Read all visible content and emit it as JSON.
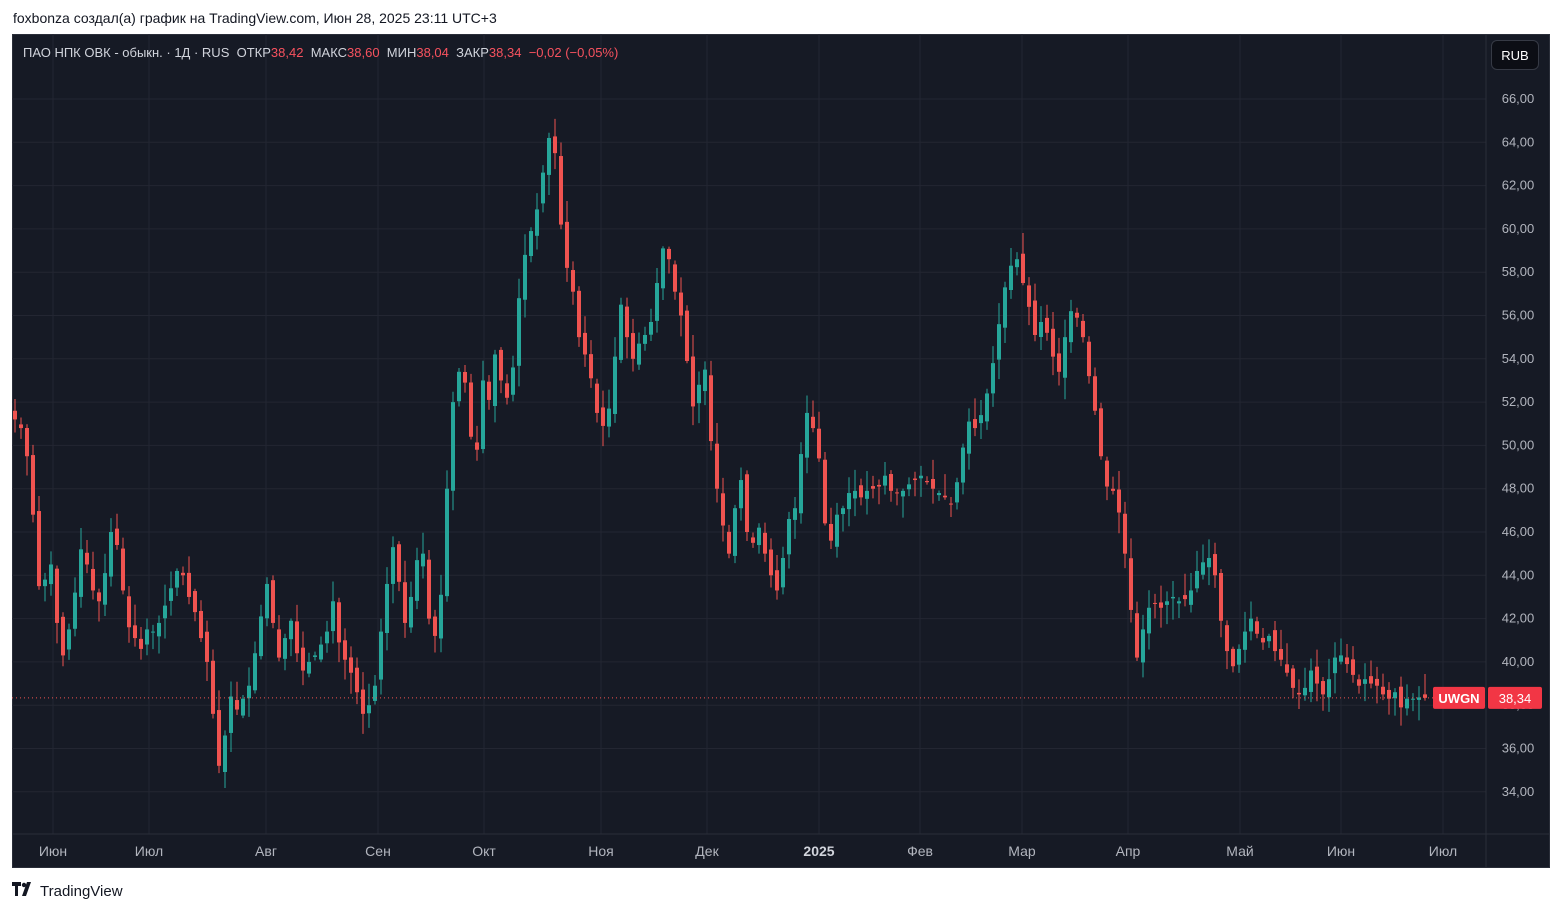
{
  "caption": "foxbonza создал(а) график на TradingView.com, Июн 28, 2025 23:11 UTC+3",
  "legend": {
    "symbol": "ПАО НПК ОВК - обыкн. · 1Д · RUS",
    "open_label": "ОТКР",
    "open_value": "38,42",
    "high_label": "МАКС",
    "high_value": "38,60",
    "low_label": "МИН",
    "low_value": "38,04",
    "close_label": "ЗАКР",
    "close_value": "38,34",
    "change": "−0,02 (−0,05%)"
  },
  "currency_button": "RUB",
  "last_price": {
    "ticker": "UWGN",
    "value": "38,34"
  },
  "footer": {
    "brand": "TradingView",
    "logo_icon": "tradingview-logo-icon"
  },
  "colors": {
    "up": "#26a69a",
    "down": "#ef5350",
    "background": "#161a25",
    "grid": "#232632",
    "text": "#b2b5be"
  },
  "chart_data": {
    "type": "candlestick",
    "x_labels": [
      "Июн",
      "Июл",
      "Авг",
      "Сен",
      "Окт",
      "Ноя",
      "Дек",
      "2025",
      "Фев",
      "Мар",
      "Апр",
      "Май",
      "Июн",
      "Июл"
    ],
    "y_ticks": [
      "34,00",
      "36,00",
      "38,00",
      "40,00",
      "42,00",
      "44,00",
      "46,00",
      "48,00",
      "50,00",
      "52,00",
      "54,00",
      "56,00",
      "58,00",
      "60,00",
      "62,00",
      "64,00",
      "66,00"
    ],
    "ylim": [
      32.0,
      68.0
    ],
    "grid": true,
    "last_value": 38.34,
    "close_series": [
      51.2,
      50.8,
      49.5,
      46.8,
      43.5,
      43.8,
      44.5,
      41.8,
      40.3,
      41.5,
      43.2,
      45.2,
      44.5,
      43.3,
      42.8,
      44.1,
      46.0,
      45.4,
      43.3,
      41.6,
      41.1,
      40.6,
      41.5,
      41.4,
      41.8,
      42.6,
      43.4,
      44.2,
      44.0,
      43.0,
      42.3,
      41.1,
      40.0,
      37.6,
      35.2,
      36.6,
      38.4,
      37.8,
      38.3,
      38.9,
      40.4,
      42.1,
      43.6,
      41.8,
      40.2,
      41.1,
      41.9,
      40.4,
      39.6,
      40.0,
      40.3,
      40.8,
      41.4,
      42.8,
      40.9,
      40.1,
      39.5,
      38.6,
      37.6,
      38.0,
      38.9,
      41.4,
      43.6,
      45.3,
      43.7,
      41.8,
      43.0,
      44.7,
      45.0,
      42.0,
      41.2,
      43.1,
      48.0,
      52.0,
      53.4,
      52.9,
      50.4,
      49.8,
      53.0,
      52.1,
      54.2,
      53.0,
      52.2,
      53.6,
      56.8,
      58.8,
      59.9,
      60.9,
      62.6,
      64.2,
      63.5,
      60.2,
      58.2,
      57.1,
      55.0,
      54.2,
      53.1,
      51.5,
      50.9,
      51.7,
      54.1,
      56.5,
      55.0,
      54.0,
      54.7,
      55.1,
      55.7,
      57.5,
      59.1,
      58.6,
      57.1,
      56.0,
      53.9,
      51.8,
      52.8,
      53.5,
      50.2,
      48.0,
      46.3,
      45.0,
      47.1,
      48.4,
      46.0,
      45.5,
      46.2,
      45.0,
      44.0,
      43.3,
      44.8,
      46.6,
      47.1,
      49.6,
      51.5,
      50.8,
      49.4,
      46.4,
      45.6,
      46.8,
      47.1,
      47.8,
      47.9,
      47.6,
      47.9,
      48.0,
      48.1,
      48.6,
      47.9,
      47.8,
      47.9,
      48.2,
      48.4,
      48.6,
      48.3,
      48.0,
      47.8,
      47.6,
      47.3,
      48.3,
      49.9,
      51.1,
      50.8,
      51.4,
      52.4,
      53.8,
      55.6,
      57.3,
      58.3,
      58.6,
      57.5,
      56.4,
      55.1,
      55.7,
      55.2,
      54.1,
      53.4,
      55.0,
      56.2,
      55.9,
      55.0,
      53.2,
      51.6,
      49.5,
      48.1,
      47.9,
      46.9,
      45.0,
      42.4,
      40.2,
      41.5,
      42.5,
      42.7,
      42.5,
      42.8,
      43.0,
      42.8,
      42.9,
      43.3,
      44.2,
      44.6,
      44.8,
      44.0,
      41.9,
      40.5,
      39.8,
      40.6,
      41.4,
      42.0,
      41.3,
      40.9,
      41.2,
      40.5,
      40.1,
      39.5,
      38.8,
      38.5,
      38.8,
      39.6,
      39.0,
      38.5,
      39.2,
      40.2,
      40.3,
      39.9,
      39.4,
      38.9,
      39.2,
      39.0,
      38.9,
      38.5,
      38.3,
      38.6,
      37.9,
      38.3,
      38.3,
      38.36,
      38.34
    ],
    "series": [
      {
        "values_from": "close_series"
      }
    ]
  }
}
